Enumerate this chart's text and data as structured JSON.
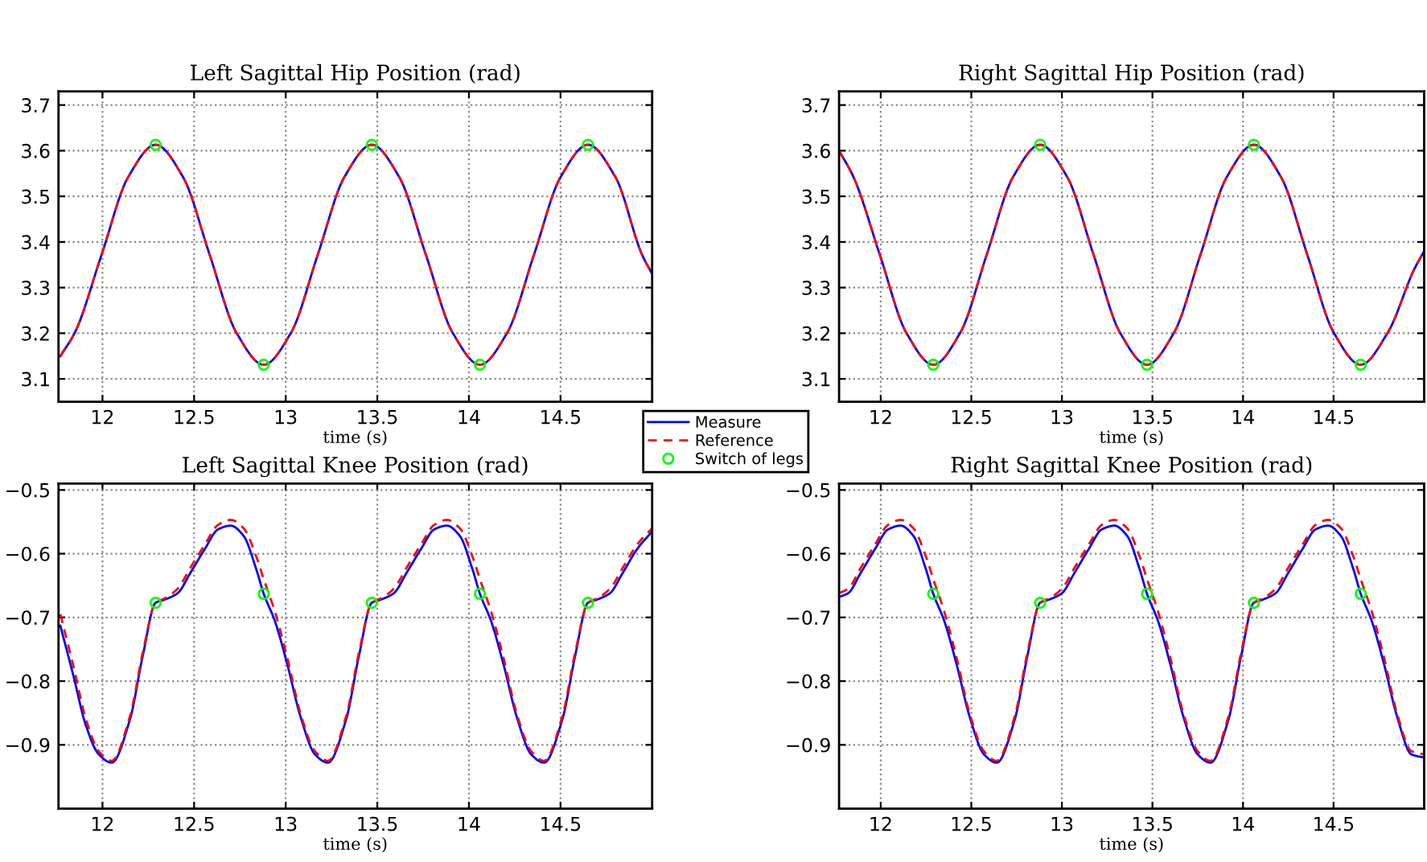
{
  "chart_data": [
    {
      "type": "line",
      "title": "Left Sagittal Hip Position (rad)",
      "xlabel": "time (s)",
      "xlim": [
        11.76,
        15.0
      ],
      "ylim": [
        3.05,
        3.73
      ],
      "xticks": [
        12,
        12.5,
        13,
        13.5,
        14,
        14.5
      ],
      "yticks": [
        3.1,
        3.2,
        3.3,
        3.4,
        3.5,
        3.6,
        3.7
      ],
      "grid": true,
      "legend": "bottom right",
      "series": [
        {
          "name": "Measure",
          "color": "#0000ff",
          "line_style": "solid",
          "marker": "none",
          "x": [
            11.77,
            11.85,
            11.995,
            12.14,
            12.29,
            12.44,
            12.585,
            12.73,
            12.88,
            13.03,
            13.175,
            13.32,
            13.47,
            13.62,
            13.765,
            13.91,
            14.06,
            14.21,
            14.355,
            14.5,
            14.65,
            14.8,
            14.945,
            15.0
          ],
          "values": [
            3.15,
            3.202,
            3.372,
            3.542,
            3.613,
            3.542,
            3.372,
            3.202,
            3.131,
            3.202,
            3.372,
            3.542,
            3.613,
            3.542,
            3.372,
            3.202,
            3.131,
            3.202,
            3.372,
            3.542,
            3.613,
            3.542,
            3.372,
            3.33
          ]
        },
        {
          "name": "Reference",
          "color": "#ff0000",
          "line_style": "dashed",
          "marker": "none",
          "x": [
            11.77,
            11.85,
            11.995,
            12.14,
            12.29,
            12.44,
            12.585,
            12.73,
            12.88,
            13.03,
            13.175,
            13.32,
            13.47,
            13.62,
            13.765,
            13.91,
            14.06,
            14.21,
            14.355,
            14.5,
            14.65,
            14.8,
            14.945,
            15.0
          ],
          "values": [
            3.15,
            3.202,
            3.372,
            3.542,
            3.613,
            3.542,
            3.372,
            3.202,
            3.131,
            3.202,
            3.372,
            3.542,
            3.613,
            3.542,
            3.372,
            3.202,
            3.131,
            3.202,
            3.372,
            3.542,
            3.613,
            3.542,
            3.372,
            3.33
          ]
        },
        {
          "name": "Switch of legs",
          "type": "scatter",
          "color": "#00ff00",
          "marker": "circle",
          "x": [
            12.29,
            12.88,
            13.47,
            14.06,
            14.65
          ],
          "values": [
            3.613,
            3.131,
            3.613,
            3.131,
            3.613
          ]
        }
      ]
    },
    {
      "type": "line",
      "title": "Right Sagittal Hip Position (rad)",
      "xlabel": "time (s)",
      "xlim": [
        11.77,
        15.0
      ],
      "ylim": [
        3.05,
        3.73
      ],
      "xticks": [
        12,
        12.5,
        13,
        13.5,
        14,
        14.5
      ],
      "yticks": [
        3.1,
        3.2,
        3.3,
        3.4,
        3.5,
        3.6,
        3.7
      ],
      "grid": true,
      "series": [
        {
          "color": "#0000ff",
          "line_style": "solid",
          "marker": "none",
          "x": [
            11.77,
            11.85,
            11.995,
            12.14,
            12.29,
            12.44,
            12.585,
            12.73,
            12.88,
            13.03,
            13.175,
            13.32,
            13.47,
            13.62,
            13.765,
            13.91,
            14.06,
            14.21,
            14.355,
            14.5,
            14.65,
            14.8,
            14.945,
            15.0
          ],
          "values": [
            3.6,
            3.542,
            3.372,
            3.202,
            3.131,
            3.202,
            3.372,
            3.542,
            3.613,
            3.542,
            3.372,
            3.202,
            3.131,
            3.202,
            3.372,
            3.542,
            3.613,
            3.542,
            3.372,
            3.202,
            3.131,
            3.202,
            3.34,
            3.38
          ]
        },
        {
          "color": "#ff0000",
          "line_style": "dashed",
          "marker": "none",
          "x": [
            11.77,
            11.85,
            11.995,
            12.14,
            12.29,
            12.44,
            12.585,
            12.73,
            12.88,
            13.03,
            13.175,
            13.32,
            13.47,
            13.62,
            13.765,
            13.91,
            14.06,
            14.21,
            14.355,
            14.5,
            14.65,
            14.8,
            14.945,
            15.0
          ],
          "values": [
            3.6,
            3.542,
            3.372,
            3.202,
            3.131,
            3.202,
            3.372,
            3.542,
            3.613,
            3.542,
            3.372,
            3.202,
            3.131,
            3.202,
            3.372,
            3.542,
            3.613,
            3.542,
            3.372,
            3.202,
            3.131,
            3.202,
            3.34,
            3.38
          ]
        },
        {
          "type": "scatter",
          "color": "#00ff00",
          "marker": "circle",
          "x": [
            12.29,
            12.88,
            13.47,
            14.06,
            14.65
          ],
          "values": [
            3.131,
            3.613,
            3.131,
            3.613,
            3.131
          ]
        }
      ]
    },
    {
      "type": "line",
      "title": "Left Sagittal Knee Position (rad)",
      "xlabel": "time (s)",
      "xlim": [
        11.76,
        15.0
      ],
      "ylim": [
        -1.0,
        -0.49
      ],
      "xticks": [
        12,
        12.5,
        13,
        13.5,
        14,
        14.5
      ],
      "yticks": [
        -0.9,
        -0.8,
        -0.7,
        -0.6,
        -0.5
      ],
      "grid": true,
      "series": [
        {
          "color": "#0000ff",
          "line_style": "solid",
          "marker": "none",
          "x": [
            11.77,
            11.84,
            11.91,
            11.98,
            12.05,
            12.15,
            12.22,
            12.29,
            12.34,
            12.41,
            12.48,
            12.56,
            12.63,
            12.7,
            12.77,
            12.84,
            12.88,
            12.94,
            13.01,
            13.08,
            13.16,
            13.23,
            13.33,
            13.4,
            13.47,
            13.52,
            13.59,
            13.66,
            13.74,
            13.81,
            13.88,
            13.95,
            14.02,
            14.06,
            14.12,
            14.19,
            14.26,
            14.34,
            14.41,
            14.51,
            14.58,
            14.65,
            14.7,
            14.77,
            14.84,
            14.92,
            15.0
          ],
          "values": [
            -0.713,
            -0.79,
            -0.87,
            -0.915,
            -0.928,
            -0.86,
            -0.76,
            -0.677,
            -0.672,
            -0.662,
            -0.63,
            -0.592,
            -0.562,
            -0.556,
            -0.572,
            -0.625,
            -0.663,
            -0.705,
            -0.775,
            -0.855,
            -0.915,
            -0.928,
            -0.86,
            -0.76,
            -0.677,
            -0.672,
            -0.662,
            -0.63,
            -0.592,
            -0.562,
            -0.556,
            -0.572,
            -0.625,
            -0.663,
            -0.705,
            -0.775,
            -0.855,
            -0.915,
            -0.928,
            -0.86,
            -0.76,
            -0.677,
            -0.672,
            -0.662,
            -0.63,
            -0.592,
            -0.565
          ]
        },
        {
          "color": "#ff0000",
          "line_style": "dashed",
          "marker": "none",
          "x": [
            11.77,
            11.84,
            11.91,
            11.98,
            12.05,
            12.15,
            12.22,
            12.29,
            12.34,
            12.41,
            12.48,
            12.56,
            12.63,
            12.7,
            12.77,
            12.84,
            12.88,
            12.94,
            13.01,
            13.08,
            13.16,
            13.23,
            13.33,
            13.4,
            13.47,
            13.52,
            13.59,
            13.66,
            13.74,
            13.81,
            13.88,
            13.95,
            14.02,
            14.06,
            14.12,
            14.19,
            14.26,
            14.34,
            14.41,
            14.51,
            14.58,
            14.65,
            14.7,
            14.77,
            14.84,
            14.92,
            15.0
          ],
          "values": [
            -0.695,
            -0.775,
            -0.86,
            -0.91,
            -0.925,
            -0.855,
            -0.755,
            -0.677,
            -0.67,
            -0.655,
            -0.622,
            -0.585,
            -0.555,
            -0.547,
            -0.56,
            -0.605,
            -0.64,
            -0.69,
            -0.765,
            -0.85,
            -0.91,
            -0.925,
            -0.855,
            -0.755,
            -0.677,
            -0.67,
            -0.655,
            -0.622,
            -0.585,
            -0.555,
            -0.547,
            -0.56,
            -0.605,
            -0.64,
            -0.69,
            -0.765,
            -0.85,
            -0.91,
            -0.925,
            -0.855,
            -0.755,
            -0.677,
            -0.67,
            -0.655,
            -0.622,
            -0.585,
            -0.56
          ]
        },
        {
          "type": "scatter",
          "color": "#00ff00",
          "marker": "circle",
          "x": [
            12.29,
            12.88,
            13.47,
            14.06,
            14.65
          ],
          "values": [
            -0.677,
            -0.663,
            -0.677,
            -0.663,
            -0.677
          ]
        }
      ]
    },
    {
      "type": "line",
      "title": "Right Sagittal Knee Position (rad)",
      "xlabel": "time (s)",
      "xlim": [
        11.77,
        15.0
      ],
      "ylim": [
        -1.0,
        -0.49
      ],
      "xticks": [
        12,
        12.5,
        13,
        13.5,
        14,
        14.5
      ],
      "yticks": [
        -0.9,
        -0.8,
        -0.7,
        -0.6,
        -0.5
      ],
      "grid": true,
      "series": [
        {
          "color": "#0000ff",
          "line_style": "solid",
          "marker": "none",
          "x": [
            11.77,
            11.82,
            11.89,
            11.97,
            12.04,
            12.11,
            12.18,
            12.25,
            12.29,
            12.35,
            12.42,
            12.49,
            12.57,
            12.64,
            12.74,
            12.81,
            12.88,
            12.93,
            13.0,
            13.07,
            13.15,
            13.22,
            13.29,
            13.36,
            13.43,
            13.47,
            13.53,
            13.6,
            13.67,
            13.75,
            13.82,
            13.92,
            13.99,
            14.06,
            14.11,
            14.18,
            14.25,
            14.33,
            14.4,
            14.47,
            14.54,
            14.61,
            14.65,
            14.71,
            14.78,
            14.85,
            14.93,
            15.0
          ],
          "values": [
            -0.668,
            -0.662,
            -0.63,
            -0.592,
            -0.562,
            -0.556,
            -0.572,
            -0.625,
            -0.663,
            -0.705,
            -0.775,
            -0.855,
            -0.915,
            -0.928,
            -0.86,
            -0.76,
            -0.677,
            -0.672,
            -0.662,
            -0.63,
            -0.592,
            -0.562,
            -0.556,
            -0.572,
            -0.625,
            -0.663,
            -0.705,
            -0.775,
            -0.855,
            -0.915,
            -0.928,
            -0.86,
            -0.76,
            -0.677,
            -0.672,
            -0.662,
            -0.63,
            -0.592,
            -0.562,
            -0.556,
            -0.572,
            -0.625,
            -0.663,
            -0.705,
            -0.775,
            -0.855,
            -0.915,
            -0.92
          ]
        },
        {
          "color": "#ff0000",
          "line_style": "dashed",
          "marker": "none",
          "x": [
            11.77,
            11.82,
            11.89,
            11.97,
            12.04,
            12.11,
            12.18,
            12.25,
            12.29,
            12.35,
            12.42,
            12.49,
            12.57,
            12.64,
            12.74,
            12.81,
            12.88,
            12.93,
            13.0,
            13.07,
            13.15,
            13.22,
            13.29,
            13.36,
            13.43,
            13.47,
            13.53,
            13.6,
            13.67,
            13.75,
            13.82,
            13.92,
            13.99,
            14.06,
            14.11,
            14.18,
            14.25,
            14.33,
            14.4,
            14.47,
            14.54,
            14.61,
            14.65,
            14.71,
            14.78,
            14.85,
            14.93,
            15.0
          ],
          "values": [
            -0.662,
            -0.655,
            -0.622,
            -0.585,
            -0.555,
            -0.547,
            -0.56,
            -0.605,
            -0.64,
            -0.69,
            -0.765,
            -0.85,
            -0.91,
            -0.925,
            -0.855,
            -0.755,
            -0.677,
            -0.67,
            -0.655,
            -0.622,
            -0.585,
            -0.555,
            -0.547,
            -0.56,
            -0.605,
            -0.64,
            -0.69,
            -0.765,
            -0.85,
            -0.91,
            -0.925,
            -0.855,
            -0.755,
            -0.677,
            -0.67,
            -0.655,
            -0.622,
            -0.585,
            -0.555,
            -0.547,
            -0.56,
            -0.605,
            -0.64,
            -0.69,
            -0.765,
            -0.85,
            -0.91,
            -0.915
          ]
        },
        {
          "type": "scatter",
          "color": "#00ff00",
          "marker": "circle",
          "x": [
            12.29,
            12.88,
            13.47,
            14.06,
            14.65
          ],
          "values": [
            -0.663,
            -0.677,
            -0.663,
            -0.677,
            -0.663
          ]
        }
      ]
    }
  ]
}
